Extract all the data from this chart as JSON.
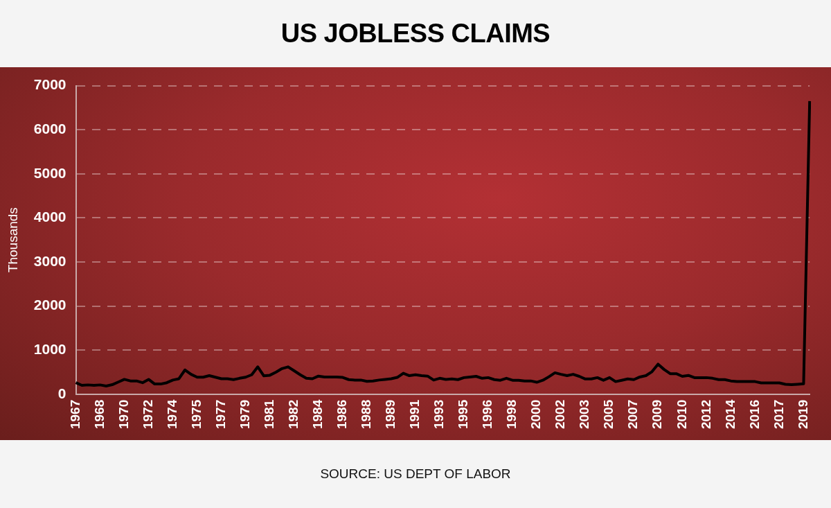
{
  "chart_data": {
    "type": "line",
    "title": "US JOBLESS CLAIMS",
    "ylabel": "Thousands",
    "annotations": [
      "SOURCE: US DEPT OF LABOR"
    ],
    "categories": [
      "1967",
      null,
      null,
      null,
      "1968",
      null,
      null,
      null,
      "1970",
      null,
      null,
      null,
      "1972",
      null,
      null,
      null,
      "1974",
      null,
      null,
      null,
      "1975",
      null,
      null,
      null,
      "1977",
      null,
      null,
      null,
      "1979",
      null,
      null,
      null,
      "1981",
      null,
      null,
      null,
      "1982",
      null,
      null,
      null,
      "1984",
      null,
      null,
      null,
      "1986",
      null,
      null,
      null,
      "1988",
      null,
      null,
      null,
      "1989",
      null,
      null,
      null,
      "1991",
      null,
      null,
      null,
      "1993",
      null,
      null,
      null,
      "1995",
      null,
      null,
      null,
      "1996",
      null,
      null,
      null,
      "1998",
      null,
      null,
      null,
      "2000",
      null,
      null,
      null,
      "2002",
      null,
      null,
      null,
      "2003",
      null,
      null,
      null,
      "2005",
      null,
      null,
      null,
      "2007",
      null,
      null,
      null,
      "2009",
      null,
      null,
      null,
      "2010",
      null,
      null,
      null,
      "2012",
      null,
      null,
      null,
      "2014",
      null,
      null,
      null,
      "2016",
      null,
      null,
      null,
      "2017",
      null,
      null,
      null,
      "2019",
      null
    ],
    "series": [
      {
        "color": "#000000",
        "values": [
          260,
          200,
          210,
          200,
          210,
          185,
          215,
          275,
          335,
          300,
          300,
          260,
          335,
          230,
          230,
          260,
          320,
          350,
          550,
          450,
          385,
          385,
          420,
          385,
          350,
          350,
          330,
          360,
          385,
          440,
          620,
          415,
          430,
          500,
          580,
          620,
          530,
          440,
          360,
          350,
          410,
          390,
          390,
          390,
          380,
          330,
          320,
          320,
          290,
          300,
          320,
          335,
          350,
          380,
          475,
          420,
          440,
          420,
          410,
          320,
          360,
          335,
          345,
          330,
          375,
          390,
          405,
          360,
          375,
          330,
          315,
          360,
          315,
          315,
          300,
          300,
          270,
          315,
          395,
          485,
          450,
          420,
          450,
          405,
          345,
          345,
          375,
          315,
          375,
          285,
          315,
          345,
          330,
          390,
          420,
          510,
          680,
          560,
          465,
          465,
          405,
          425,
          375,
          375,
          375,
          360,
          330,
          330,
          300,
          285,
          285,
          285,
          285,
          255,
          255,
          255,
          255,
          225,
          215,
          225,
          235,
          6650
        ]
      }
    ],
    "ylim": [
      0,
      7000
    ],
    "yticks": [
      0,
      1000,
      2000,
      3000,
      4000,
      5000,
      6000,
      7000
    ],
    "grid": "y",
    "legend": false
  }
}
